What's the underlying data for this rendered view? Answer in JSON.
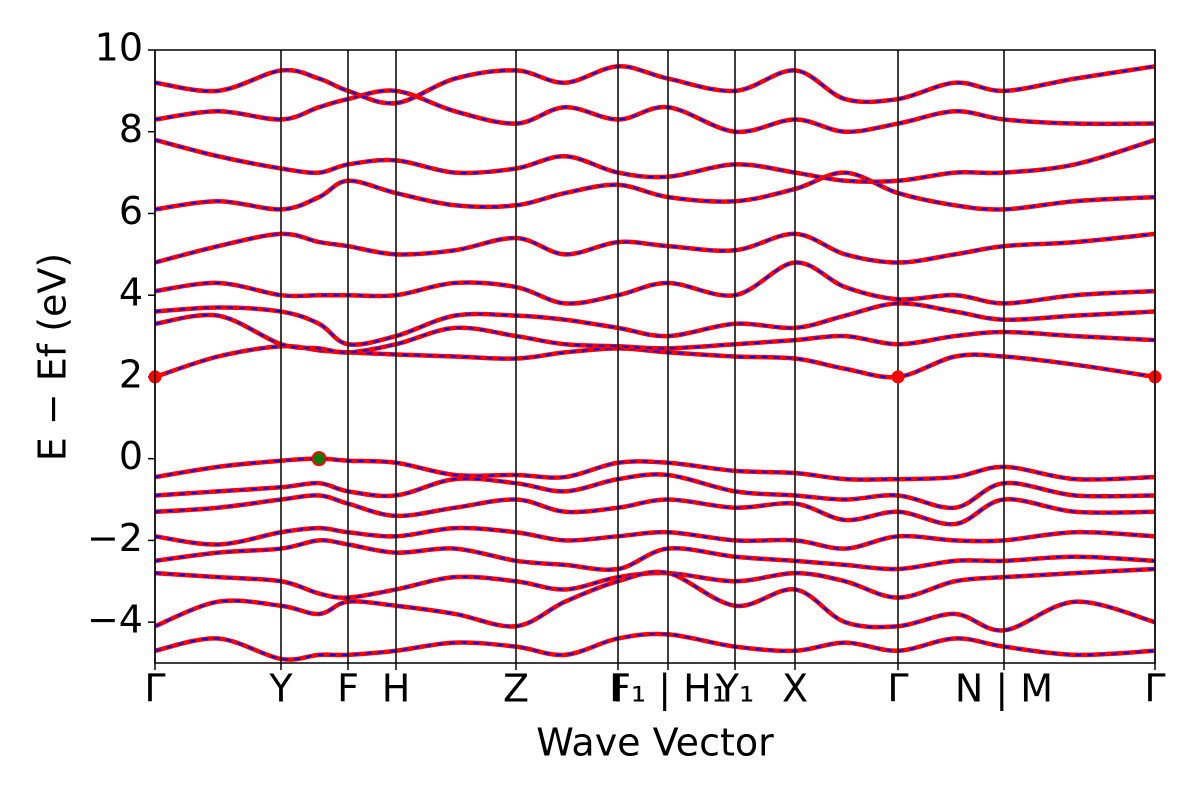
{
  "chart_data": {
    "type": "band",
    "xlabel": "Wave Vector",
    "ylabel": "E − Ef (eV)",
    "xlim": [
      0,
      1
    ],
    "xticks": [
      {
        "value": 0,
        "label": "Γ"
      },
      {
        "value": 0.126,
        "label": "Y"
      },
      {
        "value": 0.193,
        "label": "F"
      },
      {
        "value": 0.241,
        "label": "H"
      },
      {
        "value": 0.361,
        "label": "Z"
      },
      {
        "value": 0.463,
        "label": "I"
      },
      {
        "value": 0.513,
        "label": "F₁ | H₁"
      },
      {
        "value": 0.58,
        "label": "Y₁"
      },
      {
        "value": 0.64,
        "label": "X"
      },
      {
        "value": 0.743,
        "label": "Γ"
      },
      {
        "value": 0.849,
        "label": "N | M"
      },
      {
        "value": 1,
        "label": "Γ"
      }
    ],
    "ylim": [
      -5,
      10
    ],
    "yticks": [
      {
        "value": -4,
        "label": "−4"
      },
      {
        "value": -2,
        "label": "−2"
      },
      0,
      2,
      4,
      6,
      8,
      10
    ],
    "color": "#ff0000",
    "dash_color": "#0000ff",
    "x": [
      0,
      0.063,
      0.126,
      0.164,
      0.193,
      0.241,
      0.3,
      0.361,
      0.41,
      0.463,
      0.513,
      0.58,
      0.64,
      0.69,
      0.743,
      0.8,
      0.849,
      0.92,
      1
    ],
    "series": [
      {
        "values": [
          2.0,
          2.5,
          2.75,
          2.65,
          2.6,
          2.55,
          2.5,
          2.45,
          2.6,
          2.7,
          2.6,
          2.5,
          2.45,
          2.2,
          2.0,
          2.5,
          2.5,
          2.3,
          2.0
        ]
      },
      {
        "values": [
          3.3,
          3.5,
          2.8,
          2.7,
          2.6,
          2.8,
          3.2,
          3.0,
          2.8,
          2.75,
          2.7,
          2.8,
          2.9,
          3.0,
          2.8,
          3.0,
          3.1,
          3.0,
          2.9
        ]
      },
      {
        "values": [
          3.6,
          3.7,
          3.6,
          3.3,
          2.8,
          3.0,
          3.5,
          3.5,
          3.4,
          3.2,
          3.0,
          3.3,
          3.2,
          3.5,
          3.8,
          3.6,
          3.4,
          3.5,
          3.6
        ]
      },
      {
        "values": [
          4.1,
          4.3,
          4.0,
          4.0,
          4.0,
          4.0,
          4.3,
          4.2,
          3.8,
          4.0,
          4.3,
          4.0,
          4.8,
          4.2,
          3.9,
          4.0,
          3.8,
          4.0,
          4.1
        ]
      },
      {
        "values": [
          4.8,
          5.2,
          5.5,
          5.3,
          5.2,
          5.0,
          5.1,
          5.4,
          5.0,
          5.3,
          5.2,
          5.1,
          5.5,
          5.0,
          4.8,
          5.0,
          5.2,
          5.3,
          5.5
        ]
      },
      {
        "values": [
          6.1,
          6.3,
          6.1,
          6.4,
          6.8,
          6.5,
          6.2,
          6.2,
          6.5,
          6.7,
          6.4,
          6.3,
          6.6,
          7.0,
          6.5,
          6.2,
          6.1,
          6.3,
          6.4
        ]
      },
      {
        "values": [
          7.8,
          7.4,
          7.1,
          7.0,
          7.2,
          7.3,
          7.0,
          7.1,
          7.4,
          7.0,
          6.9,
          7.2,
          7.0,
          6.8,
          6.8,
          7.0,
          7.0,
          7.2,
          7.8
        ]
      },
      {
        "values": [
          8.3,
          8.5,
          8.3,
          8.6,
          8.8,
          9.0,
          8.5,
          8.2,
          8.6,
          8.3,
          8.6,
          8.0,
          8.3,
          8.0,
          8.2,
          8.5,
          8.3,
          8.2,
          8.2
        ]
      },
      {
        "values": [
          9.2,
          9.0,
          9.5,
          9.3,
          9.0,
          8.7,
          9.3,
          9.5,
          9.2,
          9.6,
          9.3,
          9.0,
          9.5,
          8.8,
          8.8,
          9.2,
          9.0,
          9.3,
          9.6
        ]
      },
      {
        "values": [
          -0.45,
          -0.2,
          -0.05,
          0.0,
          -0.05,
          -0.1,
          -0.4,
          -0.4,
          -0.45,
          -0.1,
          -0.1,
          -0.3,
          -0.35,
          -0.5,
          -0.5,
          -0.45,
          -0.2,
          -0.5,
          -0.45
        ]
      },
      {
        "values": [
          -0.9,
          -0.8,
          -0.7,
          -0.6,
          -0.8,
          -0.9,
          -0.5,
          -0.6,
          -0.8,
          -0.5,
          -0.4,
          -0.8,
          -0.9,
          -1.0,
          -0.9,
          -1.2,
          -0.6,
          -0.9,
          -0.9
        ]
      },
      {
        "values": [
          -1.3,
          -1.2,
          -1.0,
          -0.9,
          -1.1,
          -1.4,
          -1.2,
          -1.0,
          -1.3,
          -1.2,
          -1.0,
          -1.2,
          -1.1,
          -1.5,
          -1.3,
          -1.6,
          -1.0,
          -1.3,
          -1.3
        ]
      },
      {
        "values": [
          -1.9,
          -2.1,
          -1.8,
          -1.7,
          -1.8,
          -1.9,
          -1.7,
          -1.8,
          -2.0,
          -1.9,
          -1.8,
          -2.0,
          -2.0,
          -2.2,
          -1.9,
          -2.0,
          -2.0,
          -1.8,
          -1.9
        ]
      },
      {
        "values": [
          -2.5,
          -2.3,
          -2.2,
          -2.0,
          -2.1,
          -2.3,
          -2.2,
          -2.5,
          -2.6,
          -2.7,
          -2.2,
          -2.4,
          -2.5,
          -2.6,
          -2.7,
          -2.5,
          -2.5,
          -2.4,
          -2.5
        ]
      },
      {
        "values": [
          -2.8,
          -2.9,
          -3.0,
          -3.3,
          -3.4,
          -3.2,
          -2.9,
          -3.0,
          -3.2,
          -2.9,
          -2.8,
          -3.0,
          -2.8,
          -3.0,
          -3.4,
          -3.0,
          -2.9,
          -2.8,
          -2.7
        ]
      },
      {
        "values": [
          -4.1,
          -3.5,
          -3.6,
          -3.8,
          -3.5,
          -3.6,
          -3.8,
          -4.1,
          -3.5,
          -3.0,
          -2.8,
          -3.6,
          -3.2,
          -4.0,
          -4.1,
          -3.8,
          -4.2,
          -3.5,
          -4.0
        ]
      },
      {
        "values": [
          -4.7,
          -4.4,
          -4.9,
          -4.8,
          -4.8,
          -4.7,
          -4.5,
          -4.6,
          -4.8,
          -4.4,
          -4.3,
          -4.6,
          -4.7,
          -4.5,
          -4.7,
          -4.4,
          -4.6,
          -4.8,
          -4.7
        ]
      }
    ],
    "cbm": {
      "color": "#ff0000",
      "x": [
        0,
        0.743,
        1
      ],
      "values": [
        2.0,
        2.0,
        2.0
      ]
    },
    "vbm": {
      "color": "#008000",
      "x": [
        0.164
      ],
      "values": [
        0.0
      ]
    }
  }
}
